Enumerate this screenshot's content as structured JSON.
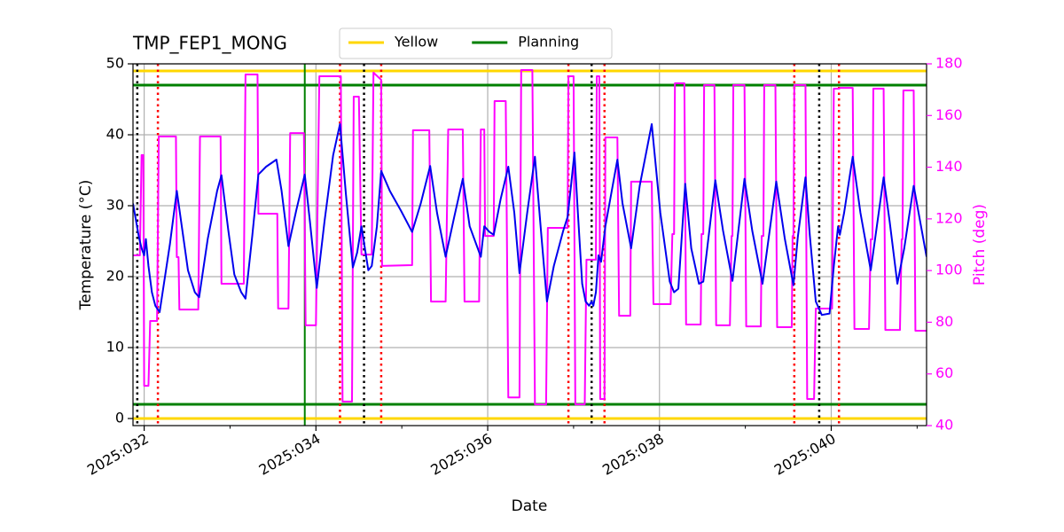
{
  "chart_data": {
    "type": "line",
    "title": "TMP_FEP1_MONG",
    "xlabel": "Date",
    "ylabel": "Temperature (°C)",
    "y2label": "Pitch (deg)",
    "y2color": "#ff00ff",
    "grid": true,
    "xlim": [
      31.87,
      41.11
    ],
    "xticks": [
      {
        "value": 32,
        "label": "2025:032"
      },
      {
        "value": 34,
        "label": "2025:034"
      },
      {
        "value": 36,
        "label": "2025:036"
      },
      {
        "value": 38,
        "label": "2025:038"
      },
      {
        "value": 40,
        "label": "2025:040"
      }
    ],
    "xminorticks": [
      33,
      35,
      37,
      39,
      41
    ],
    "ylim": [
      -1,
      50
    ],
    "yticks": [
      0,
      10,
      20,
      30,
      40,
      50
    ],
    "y2lim": [
      40,
      180
    ],
    "y2ticks": [
      40,
      60,
      80,
      100,
      120,
      140,
      160,
      180
    ],
    "hlines": [
      {
        "name": "Yellow",
        "color": "#ffd700",
        "values": [
          49,
          0
        ]
      },
      {
        "name": "Planning",
        "color": "#008000",
        "values": [
          47,
          2
        ]
      }
    ],
    "vlines": [
      {
        "color": "#000000",
        "style": "dotted",
        "x": [
          31.92,
          34.56,
          37.21,
          39.86
        ]
      },
      {
        "color": "#ff0000",
        "style": "dotted",
        "x": [
          32.16,
          34.28,
          34.76,
          36.94,
          37.36,
          39.57,
          40.09
        ]
      },
      {
        "color": "#008000",
        "style": "solid",
        "x": [
          33.87
        ]
      }
    ],
    "series": [
      {
        "color": "#ff00ff",
        "axis": "y2",
        "x": [
          31.87,
          31.95,
          31.97,
          31.99,
          32.0,
          32.05,
          32.07,
          32.15,
          32.17,
          32.37,
          32.38,
          32.4,
          32.41,
          32.63,
          32.65,
          32.89,
          32.9,
          33.16,
          33.18,
          33.32,
          33.33,
          33.55,
          33.56,
          33.68,
          33.7,
          33.86,
          33.88,
          34.0,
          34.04,
          34.29,
          34.31,
          34.42,
          34.44,
          34.5,
          34.53,
          34.65,
          34.67,
          34.76,
          34.77,
          35.12,
          35.13,
          35.32,
          35.34,
          35.51,
          35.54,
          35.71,
          35.73,
          35.9,
          35.92,
          35.96,
          35.97,
          36.07,
          36.08,
          36.21,
          36.24,
          36.37,
          36.39,
          36.52,
          36.55,
          36.68,
          36.7,
          36.93,
          36.94,
          37.0,
          37.02,
          37.13,
          37.15,
          37.26,
          37.27,
          37.3,
          37.31,
          37.36,
          37.37,
          37.51,
          37.53,
          37.66,
          37.67,
          37.91,
          37.93,
          38.13,
          38.15,
          38.17,
          38.18,
          38.29,
          38.31,
          38.48,
          38.49,
          38.51,
          38.52,
          38.64,
          38.66,
          38.82,
          38.84,
          38.85,
          38.86,
          38.99,
          39.01,
          39.18,
          39.19,
          39.21,
          39.22,
          39.35,
          39.37,
          39.54,
          39.55,
          39.56,
          39.57,
          39.7,
          39.72,
          39.8,
          39.82,
          40.01,
          40.03,
          40.09,
          40.11,
          40.25,
          40.27,
          40.44,
          40.46,
          40.48,
          40.49,
          40.61,
          40.63,
          40.8,
          40.82,
          40.83,
          40.84,
          40.96,
          40.98,
          41.11
        ],
        "values": [
          105.9,
          105.9,
          144.7,
          144.7,
          55.4,
          55.4,
          80.5,
          80.5,
          151.9,
          151.9,
          105.2,
          105.2,
          84.9,
          84.9,
          151.9,
          151.9,
          94.9,
          94.9,
          175.9,
          175.9,
          122.0,
          122.0,
          85.3,
          85.3,
          153.2,
          153.2,
          78.8,
          78.8,
          175.2,
          175.2,
          49.3,
          49.3,
          167.3,
          167.3,
          106.2,
          106.2,
          176.6,
          173.8,
          101.8,
          102.1,
          154.3,
          154.3,
          88.0,
          88.0,
          154.6,
          154.6,
          88.0,
          88.0,
          154.6,
          154.6,
          113.4,
          113.4,
          165.6,
          165.6,
          50.9,
          50.9,
          177.6,
          177.6,
          48.2,
          48.2,
          116.5,
          116.5,
          175.2,
          175.2,
          48.2,
          48.2,
          104.2,
          104.2,
          175.2,
          175.2,
          50.3,
          50.3,
          151.5,
          151.5,
          82.5,
          82.5,
          134.4,
          134.4,
          87.0,
          87.0,
          114.1,
          114.1,
          172.5,
          172.5,
          79.1,
          79.1,
          114.1,
          114.1,
          171.8,
          171.8,
          78.8,
          78.8,
          113.4,
          113.4,
          171.8,
          171.8,
          78.4,
          78.4,
          113.4,
          113.4,
          171.8,
          171.8,
          78.1,
          78.1,
          113.4,
          113.4,
          171.8,
          171.8,
          50.3,
          50.3,
          85.3,
          85.3,
          170.4,
          170.4,
          170.7,
          170.7,
          77.4,
          77.4,
          112.1,
          112.1,
          170.4,
          170.4,
          77.0,
          77.0,
          112.1,
          112.1,
          169.7,
          169.7,
          76.7,
          76.7
        ]
      },
      {
        "color": "#0000ee",
        "x": [
          31.87,
          31.94,
          31.97,
          32.0,
          32.02,
          32.05,
          32.09,
          32.13,
          32.18,
          32.23,
          32.3,
          32.38,
          32.43,
          32.51,
          32.59,
          32.64,
          32.74,
          32.85,
          32.9,
          32.98,
          33.05,
          33.13,
          33.18,
          33.26,
          33.33,
          33.42,
          33.54,
          33.6,
          33.68,
          33.77,
          33.87,
          33.93,
          34.01,
          34.1,
          34.2,
          34.28,
          34.35,
          34.43,
          34.48,
          34.53,
          34.57,
          34.61,
          34.65,
          34.71,
          34.76,
          34.86,
          34.99,
          35.12,
          35.22,
          35.33,
          35.41,
          35.51,
          35.61,
          35.71,
          35.79,
          35.92,
          35.96,
          36.02,
          36.07,
          36.15,
          36.24,
          36.31,
          36.37,
          36.46,
          36.55,
          36.62,
          36.69,
          36.77,
          36.88,
          36.93,
          36.97,
          37.01,
          37.05,
          37.1,
          37.14,
          37.18,
          37.21,
          37.23,
          37.26,
          37.29,
          37.32,
          37.37,
          37.51,
          37.57,
          37.67,
          37.77,
          37.91,
          38.01,
          38.12,
          38.17,
          38.22,
          38.3,
          38.37,
          38.46,
          38.51,
          38.65,
          38.74,
          38.85,
          38.99,
          39.08,
          39.2,
          39.36,
          39.46,
          39.56,
          39.61,
          39.7,
          39.75,
          39.82,
          39.89,
          39.98,
          40.03,
          40.08,
          40.1,
          40.15,
          40.25,
          40.34,
          40.46,
          40.61,
          40.68,
          40.77,
          40.85,
          40.96,
          41.11
        ],
        "values": [
          30.3,
          25.5,
          24,
          23,
          25.3,
          21.5,
          17.8,
          15.9,
          15,
          19,
          24.6,
          32.1,
          27.8,
          20.9,
          17.8,
          17.1,
          25.3,
          32.1,
          34.3,
          26.5,
          20.3,
          17.8,
          16.9,
          25.9,
          34.4,
          35.5,
          36.5,
          32.1,
          24.3,
          29.3,
          34.4,
          27.8,
          18.4,
          27.8,
          37.1,
          41.5,
          31.5,
          21.3,
          23.4,
          27.1,
          24,
          20.9,
          21.5,
          27.1,
          34.9,
          32.1,
          29.3,
          26.3,
          30.3,
          35.6,
          29,
          22.8,
          28.4,
          33.8,
          27.1,
          22.8,
          27.1,
          26.3,
          25.9,
          30.9,
          35.5,
          29,
          20.5,
          29,
          36.9,
          26.5,
          16.5,
          21.5,
          26.5,
          28.4,
          32.8,
          37.5,
          29,
          19,
          16.5,
          15.9,
          16.5,
          15.9,
          17.8,
          23,
          22.1,
          27.1,
          36.5,
          30.3,
          24,
          32.8,
          41.5,
          29,
          19.3,
          17.8,
          18.3,
          33.1,
          24,
          19,
          19.3,
          33.6,
          26.5,
          19.4,
          33.8,
          26.5,
          19,
          33.4,
          25.3,
          18.8,
          25.5,
          34,
          25.9,
          16.5,
          14.6,
          14.8,
          21.5,
          27.1,
          25.9,
          29,
          36.9,
          29,
          20.9,
          34,
          27.8,
          19,
          24,
          32.8,
          22.8
        ]
      }
    ]
  }
}
